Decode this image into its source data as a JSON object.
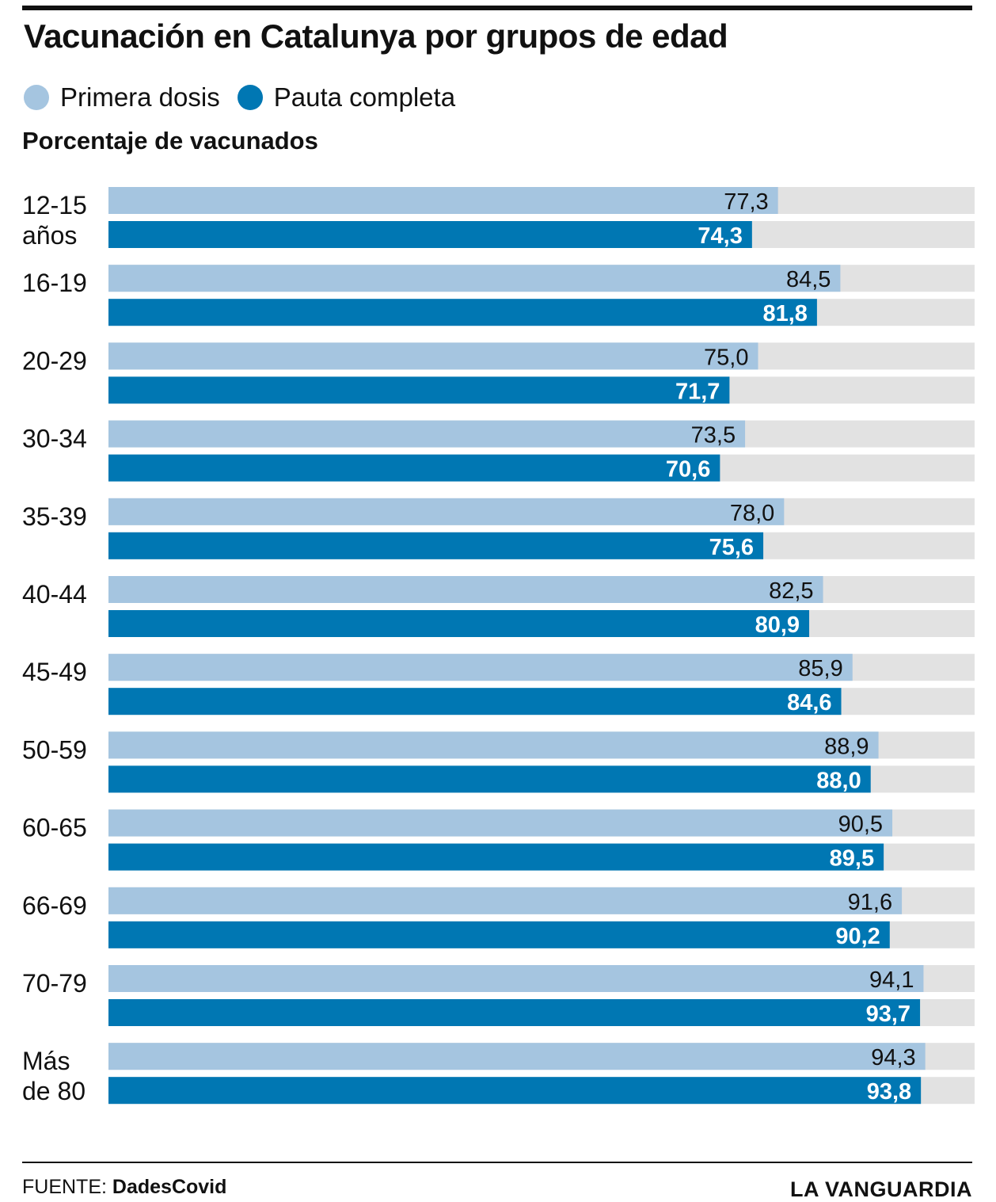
{
  "title": "Vacunación en Catalunya por grupos de edad",
  "legend": {
    "items": [
      {
        "label": "Primera dosis",
        "color": "#a5c5e0"
      },
      {
        "label": "Pauta completa",
        "color": "#0077b3"
      }
    ]
  },
  "subtitle": "Porcentaje de vacunados",
  "footer": {
    "source_prefix": "FUENTE:",
    "source_name": "DadesCovid",
    "brand": "LA VANGUARDIA"
  },
  "colors": {
    "first_dose": "#a5c5e0",
    "full": "#0077b3",
    "track": "#e2e2e2",
    "text_dark": "#111111",
    "text_light": "#ffffff"
  },
  "chart_data": {
    "type": "bar",
    "orientation": "horizontal",
    "xlim": [
      0,
      100
    ],
    "categories": [
      [
        "12-15",
        "años"
      ],
      [
        "16-19"
      ],
      [
        "20-29"
      ],
      [
        "30-34"
      ],
      [
        "35-39"
      ],
      [
        "40-44"
      ],
      [
        "45-49"
      ],
      [
        "50-59"
      ],
      [
        "60-65"
      ],
      [
        "66-69"
      ],
      [
        "70-79"
      ],
      [
        "Más",
        "de 80"
      ]
    ],
    "series": [
      {
        "name": "Primera dosis",
        "values": [
          77.3,
          84.5,
          75.0,
          73.5,
          78.0,
          82.5,
          85.9,
          88.9,
          90.5,
          91.6,
          94.1,
          94.3
        ],
        "labels": [
          "77,3",
          "84,5",
          "75,0",
          "73,5",
          "78,0",
          "82,5",
          "85,9",
          "88,9",
          "90,5",
          "91,6",
          "94,1",
          "94,3"
        ]
      },
      {
        "name": "Pauta completa",
        "values": [
          74.3,
          81.8,
          71.7,
          70.6,
          75.6,
          80.9,
          84.6,
          88.0,
          89.5,
          90.2,
          93.7,
          93.8
        ],
        "labels": [
          "74,3",
          "81,8",
          "71,7",
          "70,6",
          "75,6",
          "80,9",
          "84,6",
          "88,0",
          "89,5",
          "90,2",
          "93,7",
          "93,8"
        ]
      }
    ]
  }
}
